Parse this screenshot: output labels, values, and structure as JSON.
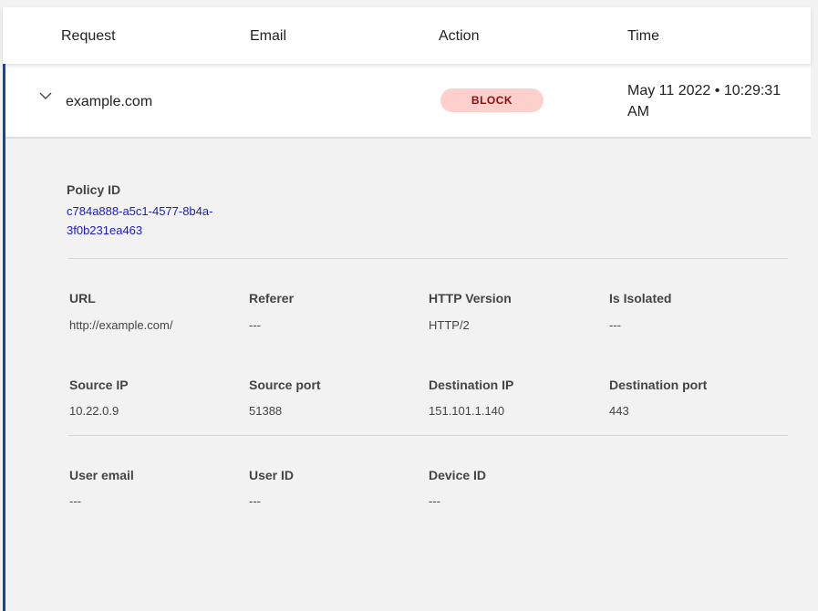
{
  "columns": [
    "Request",
    "Email",
    "Action",
    "Time"
  ],
  "row": {
    "request": "example.com",
    "email": "",
    "action": "BLOCK",
    "time": "May 11 2022 • 10:29:31 AM"
  },
  "details": {
    "policy_id_label": "Policy ID",
    "policy_id": "c784a888-a5c1-4577-8b4a-3f0b231ea463",
    "fields": [
      {
        "label": "URL",
        "value": "http://example.com/"
      },
      {
        "label": "Referer",
        "value": "---"
      },
      {
        "label": "HTTP Version",
        "value": "HTTP/2"
      },
      {
        "label": "Is Isolated",
        "value": "---"
      },
      {
        "label": "Source IP",
        "value": "10.22.0.9"
      },
      {
        "label": "Source port",
        "value": "51388"
      },
      {
        "label": "Destination IP",
        "value": "151.101.1.140"
      },
      {
        "label": "Destination port",
        "value": "443"
      },
      {
        "label": "User email",
        "value": "---"
      },
      {
        "label": "User ID",
        "value": "---"
      },
      {
        "label": "Device ID",
        "value": "---"
      }
    ]
  },
  "colors": {
    "accent": "#0b4aa0",
    "block_bg": "#fdd0cd",
    "block_text": "#8b0c0c",
    "link": "#1a1acc"
  }
}
